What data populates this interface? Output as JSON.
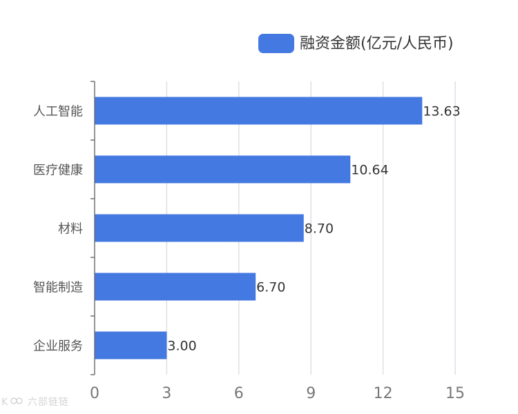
{
  "chart_data": {
    "type": "bar",
    "orientation": "horizontal",
    "categories": [
      "人工智能",
      "医疗健康",
      "材料",
      "智能制造",
      "企业服务"
    ],
    "series": [
      {
        "name": "融资金额(亿元/人民币)",
        "values": [
          13.63,
          10.64,
          8.7,
          6.7,
          3.0
        ],
        "value_labels": [
          "13.63",
          "10.64",
          "8.70",
          "6.70",
          "3.00"
        ],
        "color": "#4479e1"
      }
    ],
    "xlim": [
      0,
      15
    ],
    "xticks": [
      0,
      3,
      6,
      9,
      12,
      15
    ],
    "grid": true,
    "legend_position": "top-right"
  },
  "watermark": {
    "text": "六部链链"
  }
}
